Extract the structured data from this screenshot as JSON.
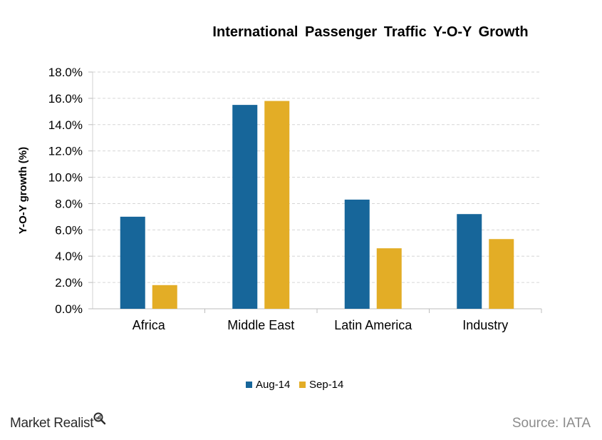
{
  "chart_data": {
    "type": "bar",
    "title": "International  Passenger  Traffic  Y-O-Y  Growth",
    "ylabel": "Y-O-Y  growth (%)",
    "xlabel": "",
    "categories": [
      "Africa",
      "Middle East",
      "Latin America",
      "Industry"
    ],
    "series": [
      {
        "name": "Aug-14",
        "color": "#17669a",
        "values": [
          7.0,
          15.5,
          8.3,
          7.2
        ]
      },
      {
        "name": "Sep-14",
        "color": "#e3ad26",
        "values": [
          1.8,
          15.8,
          4.6,
          5.3
        ]
      }
    ],
    "ylim": [
      0,
      18
    ],
    "yticks": [
      "0.0%",
      "2.0%",
      "4.0%",
      "6.0%",
      "8.0%",
      "10.0%",
      "12.0%",
      "14.0%",
      "16.0%",
      "18.0%"
    ],
    "grid": true,
    "legend": "bottom"
  },
  "footer": {
    "brand": "Market Realist",
    "source": "Source: IATA"
  }
}
